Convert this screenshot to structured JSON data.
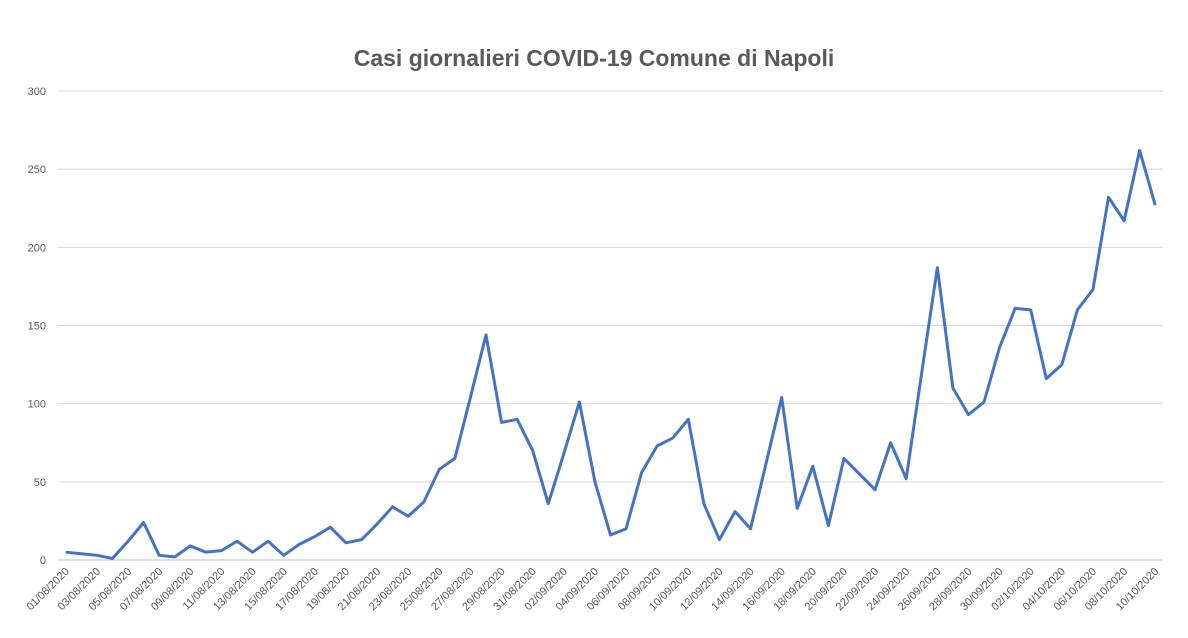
{
  "chart_data": {
    "type": "line",
    "title": "Casi giornalieri COVID-19 Comune di Napoli",
    "categories": [
      "01/08/2020",
      null,
      "03/08/2020",
      null,
      "05/08/2020",
      null,
      "07/08/2020",
      null,
      "09/08/2020",
      null,
      "11/08/2020",
      null,
      "13/08/2020",
      null,
      "15/08/2020",
      null,
      "17/08/2020",
      null,
      "19/08/2020",
      null,
      "21/08/2020",
      null,
      "23/08/2020",
      null,
      "25/08/2020",
      null,
      "27/08/2020",
      null,
      "29/08/2020",
      null,
      "31/08/2020",
      null,
      "02/09/2020",
      null,
      "04/09/2020",
      null,
      "06/09/2020",
      null,
      "08/09/2020",
      null,
      "10/09/2020",
      null,
      "12/09/2020",
      null,
      "14/09/2020",
      null,
      "16/09/2020",
      null,
      "18/09/2020",
      null,
      "20/09/2020",
      null,
      "22/09/2020",
      null,
      "24/09/2020",
      null,
      "26/09/2020",
      null,
      "28/09/2020",
      null,
      "30/09/2020",
      null,
      "02/10/2020",
      null,
      "04/10/2020",
      null,
      "06/10/2020",
      null,
      "08/10/2020",
      null,
      "10/10/2020"
    ],
    "series": [
      {
        "name": "Casi",
        "color": "#4472c4",
        "values": [
          5,
          4,
          3,
          1,
          12,
          24,
          3,
          2,
          9,
          5,
          6,
          12,
          5,
          12,
          3,
          10,
          15,
          21,
          11,
          13,
          23,
          34,
          28,
          37,
          58,
          65,
          104,
          144,
          88,
          90,
          70,
          36,
          68,
          101,
          50,
          16,
          20,
          56,
          73,
          78,
          90,
          36,
          13,
          31,
          20,
          62,
          104,
          33,
          60,
          22,
          65,
          55,
          45,
          75,
          52,
          120,
          187,
          110,
          93,
          101,
          136,
          161,
          160,
          116,
          125,
          160,
          173,
          232,
          217,
          262,
          227
        ]
      }
    ],
    "ylim": [
      0,
      300
    ],
    "yticks": [
      0,
      50,
      100,
      150,
      200,
      250,
      300
    ],
    "grid": true
  }
}
